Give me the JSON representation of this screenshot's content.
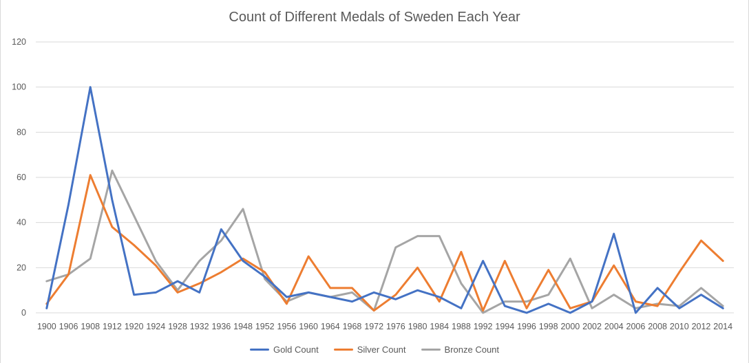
{
  "chart_data": {
    "type": "line",
    "title": "Count of Different Medals of Sweden Each Year",
    "xlabel": "",
    "ylabel": "",
    "ylim": [
      0,
      120
    ],
    "yticks": [
      "0",
      "20",
      "40",
      "60",
      "80",
      "100",
      "120"
    ],
    "grid": true,
    "legend_position": "bottom",
    "categories": [
      "1900",
      "1906",
      "1908",
      "1912",
      "1920",
      "1924",
      "1928",
      "1932",
      "1936",
      "1948",
      "1952",
      "1956",
      "1960",
      "1964",
      "1968",
      "1972",
      "1976",
      "1980",
      "1984",
      "1988",
      "1992",
      "1994",
      "1996",
      "1998",
      "2000",
      "2002",
      "2004",
      "2006",
      "2008",
      "2010",
      "2012",
      "2014"
    ],
    "series": [
      {
        "name": "Gold Count",
        "color": "#4472c4",
        "values": [
          2,
          48,
          100,
          50,
          8,
          9,
          14,
          9,
          37,
          23,
          16,
          7,
          9,
          7,
          5,
          9,
          6,
          10,
          7,
          2,
          23,
          3,
          0,
          4,
          0,
          5,
          35,
          0,
          11,
          2,
          8,
          2
        ]
      },
      {
        "name": "Silver Count",
        "color": "#ed7d31",
        "values": [
          4,
          17,
          61,
          38,
          30,
          21,
          9,
          13,
          18,
          24,
          18,
          4,
          25,
          11,
          11,
          1,
          8,
          20,
          5,
          27,
          1,
          23,
          2,
          19,
          2,
          5,
          21,
          5,
          3,
          18,
          32,
          23
        ]
      },
      {
        "name": "Bronze Count",
        "color": "#a5a5a5",
        "values": [
          14,
          17,
          24,
          63,
          43,
          23,
          10,
          23,
          32,
          46,
          15,
          5,
          9,
          7,
          9,
          1,
          29,
          34,
          34,
          13,
          0,
          5,
          5,
          8,
          24,
          2,
          8,
          2,
          4,
          3,
          11,
          3
        ]
      }
    ]
  }
}
